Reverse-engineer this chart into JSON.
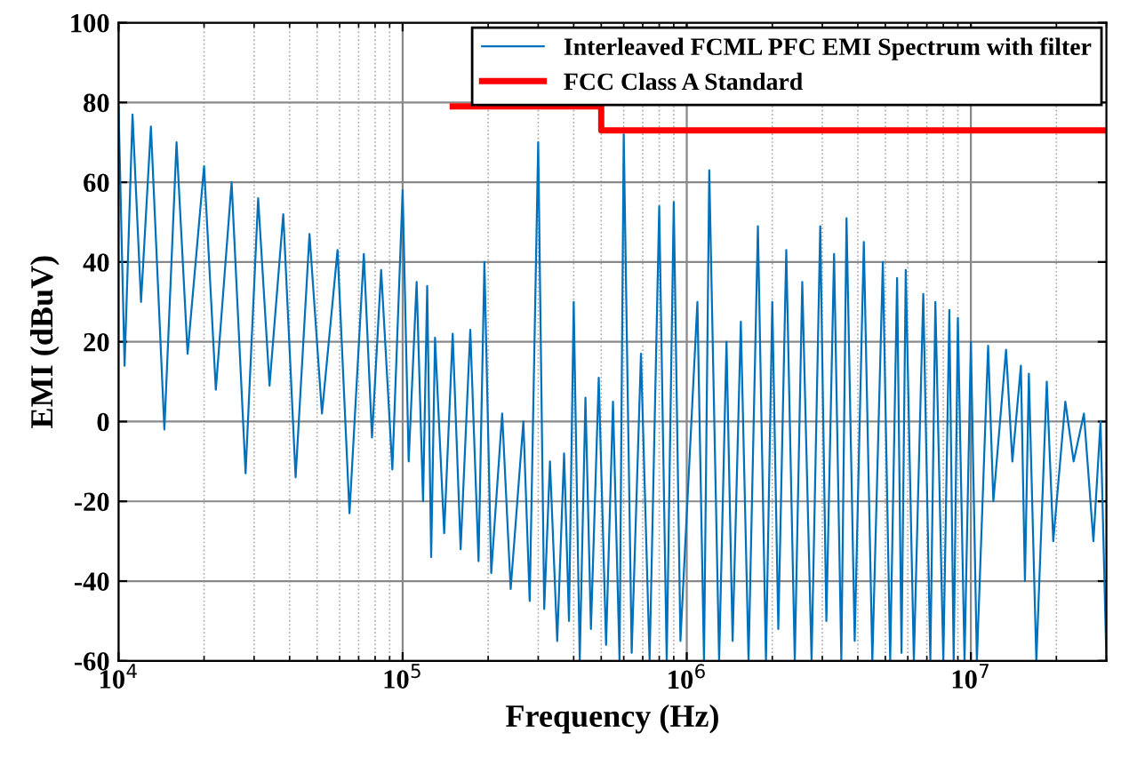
{
  "chart_data": {
    "type": "line",
    "xlabel": "Frequency (Hz)",
    "ylabel": "EMI (dBuV)",
    "log": "x",
    "xlim": [
      10000,
      30000000
    ],
    "xticks": [
      {
        "value": 10000,
        "label": "10$^{4}$"
      },
      {
        "value": 100000,
        "label": "10$^{5}$"
      },
      {
        "value": 1000000,
        "label": "10$^{6}$"
      },
      {
        "value": 10000000,
        "label": "10$^{7}$"
      }
    ],
    "ylim": [
      -60,
      100
    ],
    "yticks": [
      -60,
      -40,
      -20,
      0,
      20,
      40,
      60,
      80,
      100
    ],
    "grid": true,
    "legend": "top right",
    "series": [
      {
        "name": "Interleaved FCML PFC EMI Spectrum with filter",
        "color": "#0072bd",
        "x": [
          10000,
          10500,
          11200,
          12000,
          13000,
          14500,
          16000,
          17500,
          20000,
          22000,
          25000,
          28000,
          31000,
          34000,
          38000,
          42000,
          47000,
          52000,
          59000,
          65000,
          73000,
          78000,
          84000,
          92000,
          100000,
          105000,
          112000,
          118000,
          122000,
          126000,
          130000,
          140000,
          150000,
          160000,
          173000,
          185000,
          194000,
          205000,
          224000,
          240000,
          266000,
          280000,
          300000,
          315000,
          330000,
          350000,
          370000,
          385000,
          400000,
          420000,
          440000,
          460000,
          490000,
          520000,
          550000,
          580000,
          600000,
          640000,
          690000,
          740000,
          800000,
          850000,
          900000,
          950000,
          1090000,
          1150000,
          1200000,
          1300000,
          1380000,
          1450000,
          1550000,
          1650000,
          1780000,
          1900000,
          2000000,
          2100000,
          2240000,
          2400000,
          2550000,
          2750000,
          2950000,
          3100000,
          3300000,
          3500000,
          3650000,
          3900000,
          4200000,
          4500000,
          4900000,
          5200000,
          5500000,
          5700000,
          5900000,
          6300000,
          6800000,
          7200000,
          7500000,
          8000000,
          8400000,
          8700000,
          9000000,
          9500000,
          10000000,
          10500000,
          11500000,
          12000000,
          13300000,
          14000000,
          15000000,
          15500000,
          16000000,
          17000000,
          18500000,
          19500000,
          21500000,
          23000000,
          25000000,
          27000000,
          28600000,
          30000000
        ],
        "values": [
          79,
          14,
          77,
          30,
          74,
          -2,
          70,
          17,
          64,
          8,
          60,
          -13,
          56,
          9,
          52,
          -14,
          47,
          2,
          43,
          -23,
          42,
          -4,
          38,
          -12,
          58,
          -10,
          35,
          -20,
          34,
          -34,
          21,
          -28,
          22,
          -32,
          23,
          -35,
          40,
          -38,
          2,
          -42,
          0,
          -45,
          70,
          -47,
          -10,
          -55,
          -8,
          -50,
          30,
          -60,
          6,
          -52,
          11,
          -56,
          5,
          -60,
          72,
          -58,
          17,
          -60,
          54,
          -60,
          55,
          -55,
          30,
          -60,
          63,
          -60,
          20,
          -55,
          25,
          -60,
          49,
          -60,
          30,
          -52,
          43,
          -60,
          35,
          -60,
          49,
          -50,
          42,
          -60,
          51,
          -55,
          45,
          -60,
          40,
          -60,
          36,
          -58,
          38,
          -60,
          32,
          -60,
          30,
          -60,
          28,
          -60,
          26,
          -60,
          20,
          -60,
          19,
          -20,
          18,
          -10,
          14,
          -40,
          12,
          -60,
          10,
          -30,
          5,
          -10,
          2,
          -30,
          0,
          -60
        ]
      },
      {
        "name": "FCC Class A Standard",
        "color": "#ff0000",
        "type": "step",
        "x": [
          150000,
          500000,
          30000000
        ],
        "values": [
          79,
          73,
          73
        ]
      }
    ]
  }
}
